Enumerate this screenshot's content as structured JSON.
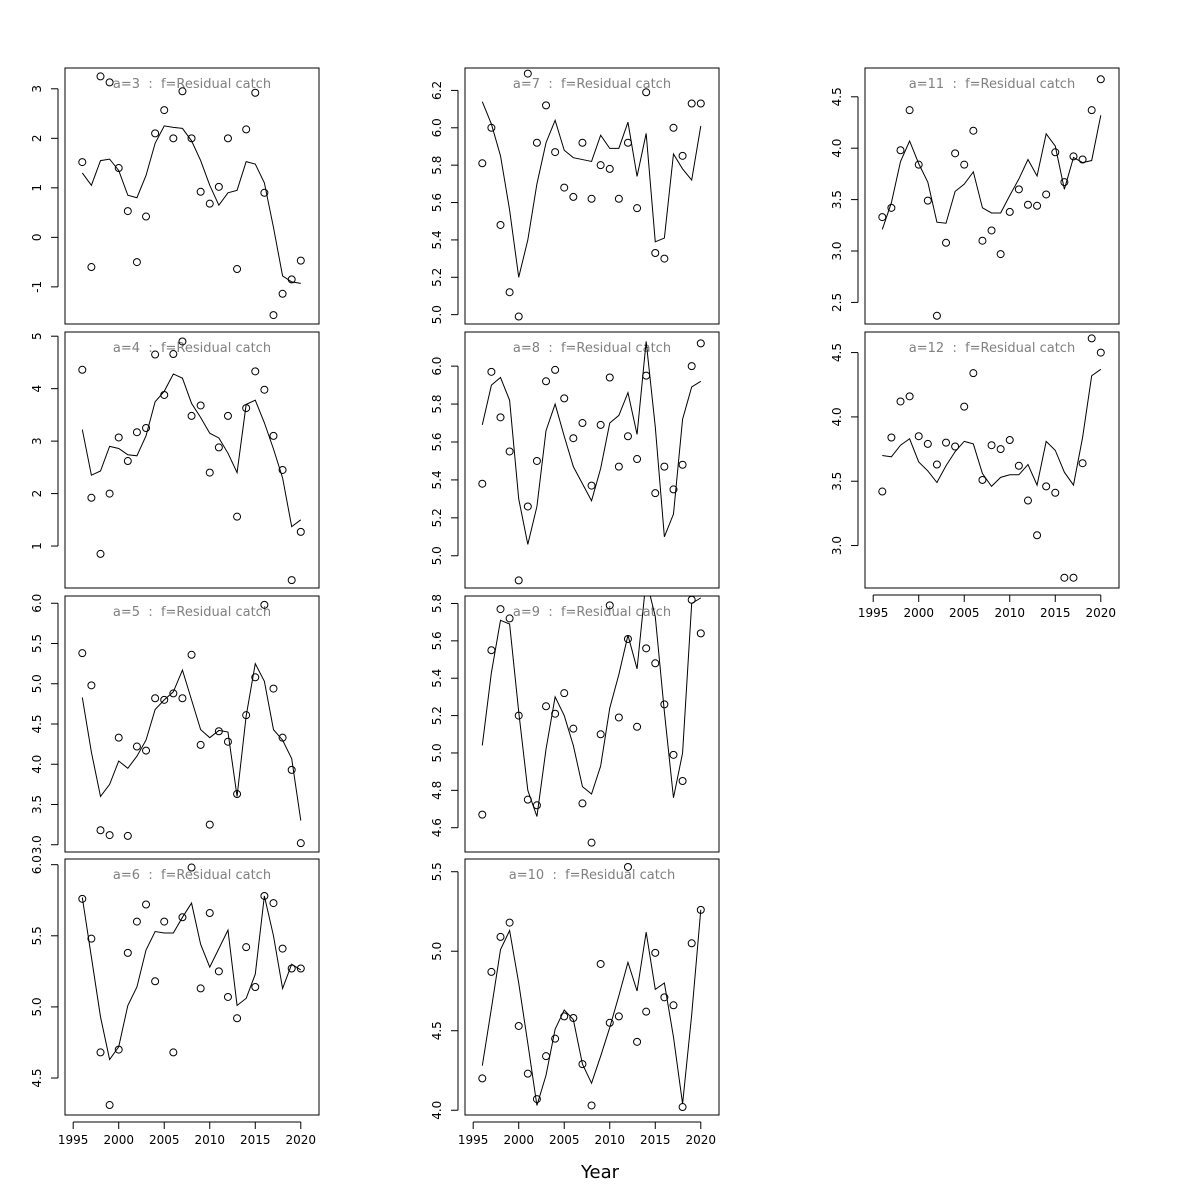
{
  "xlabel": "Year",
  "chart_data": [
    {
      "type": "scatter+line",
      "title": "a=3  :  f=Residual catch",
      "x": [
        1996,
        1997,
        1998,
        1999,
        2000,
        2001,
        2002,
        2003,
        2004,
        2005,
        2006,
        2007,
        2008,
        2009,
        2010,
        2011,
        2012,
        2013,
        2014,
        2015,
        2016,
        2017,
        2018,
        2019,
        2020
      ],
      "xlim": [
        1994.1,
        2022
      ],
      "ylim": [
        -1.75,
        3.42
      ],
      "yticks": [
        -1,
        0,
        1,
        2,
        3
      ],
      "series": [
        {
          "mark": "line",
          "color": "#000000",
          "values": [
            1.3,
            1.05,
            1.55,
            1.58,
            1.35,
            0.85,
            0.8,
            1.25,
            1.9,
            2.25,
            2.22,
            2.2,
            1.95,
            1.55,
            1.05,
            0.65,
            0.9,
            0.95,
            1.53,
            1.48,
            1.1,
            0.2,
            -0.78,
            -0.9,
            -0.93
          ]
        },
        {
          "mark": "circle",
          "color": "#000000",
          "values": [
            1.52,
            -0.6,
            3.25,
            3.13,
            1.4,
            0.53,
            -0.5,
            0.42,
            2.1,
            2.57,
            2.0,
            2.95,
            2.0,
            0.92,
            0.68,
            1.02,
            2.0,
            -0.64,
            2.18,
            2.92,
            0.9,
            -1.57,
            -1.14,
            -0.85,
            -0.47
          ]
        }
      ]
    },
    {
      "type": "scatter+line",
      "title": "a=4  :  f=Residual catch",
      "x": [
        1996,
        1997,
        1998,
        1999,
        2000,
        2001,
        2002,
        2003,
        2004,
        2005,
        2006,
        2007,
        2008,
        2009,
        2010,
        2011,
        2012,
        2013,
        2014,
        2015,
        2016,
        2017,
        2018,
        2019,
        2020
      ],
      "xlim": [
        1994.1,
        2022
      ],
      "ylim": [
        0.2,
        5.08
      ],
      "yticks": [
        1,
        2,
        3,
        4,
        5
      ],
      "series": [
        {
          "mark": "line",
          "color": "#000000",
          "values": [
            3.22,
            2.35,
            2.43,
            2.9,
            2.86,
            2.74,
            2.72,
            3.1,
            3.75,
            3.95,
            4.28,
            4.2,
            3.72,
            3.45,
            3.15,
            3.06,
            2.77,
            2.4,
            3.7,
            3.78,
            3.35,
            2.85,
            2.3,
            1.37,
            1.5
          ]
        },
        {
          "mark": "circle",
          "color": "#000000",
          "values": [
            4.36,
            1.92,
            0.85,
            2.0,
            3.07,
            2.62,
            3.17,
            3.25,
            4.65,
            3.88,
            4.66,
            4.9,
            3.48,
            3.68,
            2.4,
            2.88,
            3.48,
            1.56,
            3.63,
            4.33,
            3.98,
            3.1,
            2.45,
            0.35,
            1.27
          ]
        }
      ]
    },
    {
      "type": "scatter+line",
      "title": "a=5  :  f=Residual catch",
      "x": [
        1996,
        1997,
        1998,
        1999,
        2000,
        2001,
        2002,
        2003,
        2004,
        2005,
        2006,
        2007,
        2008,
        2009,
        2010,
        2011,
        2012,
        2013,
        2014,
        2015,
        2016,
        2017,
        2018,
        2019,
        2020
      ],
      "xlim": [
        1994.1,
        2022
      ],
      "ylim": [
        2.91,
        6.09
      ],
      "yticks": [
        {
          "value": 3,
          "label": "3.0"
        },
        3.5,
        {
          "value": 4,
          "label": "4.0"
        },
        4.5,
        {
          "value": 5,
          "label": "5.0"
        },
        5.5,
        {
          "value": 6,
          "label": "6.0"
        }
      ],
      "series": [
        {
          "mark": "line",
          "color": "#000000",
          "values": [
            4.83,
            4.15,
            3.6,
            3.75,
            4.04,
            3.95,
            4.1,
            4.3,
            4.68,
            4.8,
            4.9,
            5.17,
            4.8,
            4.43,
            4.33,
            4.42,
            4.4,
            3.6,
            4.6,
            5.25,
            5.03,
            4.43,
            4.3,
            4.07,
            3.3
          ]
        },
        {
          "mark": "circle",
          "color": "#000000",
          "values": [
            5.38,
            4.98,
            3.18,
            3.12,
            4.33,
            3.11,
            4.22,
            4.17,
            4.82,
            4.8,
            4.88,
            4.82,
            5.36,
            4.24,
            3.25,
            4.41,
            4.28,
            3.63,
            4.61,
            5.08,
            5.98,
            4.94,
            4.33,
            3.93,
            3.02
          ]
        }
      ]
    },
    {
      "type": "scatter+line",
      "title": "a=6  :  f=Residual catch",
      "x": [
        1996,
        1997,
        1998,
        1999,
        2000,
        2001,
        2002,
        2003,
        2004,
        2005,
        2006,
        2007,
        2008,
        2009,
        2010,
        2011,
        2012,
        2013,
        2014,
        2015,
        2016,
        2017,
        2018,
        2019,
        2020
      ],
      "xlim": [
        1994.1,
        2022
      ],
      "xticks": [
        1995,
        2000,
        2005,
        2010,
        2015,
        2020
      ],
      "ylim": [
        4.24,
        6.04
      ],
      "yticks": [
        4.5,
        {
          "value": 5,
          "label": "5.0"
        },
        5.5,
        {
          "value": 6,
          "label": "6.0"
        }
      ],
      "series": [
        {
          "mark": "line",
          "color": "#000000",
          "values": [
            5.77,
            5.35,
            4.93,
            4.63,
            4.72,
            5.01,
            5.14,
            5.4,
            5.53,
            5.52,
            5.52,
            5.63,
            5.73,
            5.44,
            5.28,
            5.41,
            5.54,
            5.01,
            5.06,
            5.23,
            5.78,
            5.5,
            5.13,
            5.3,
            5.26
          ]
        },
        {
          "mark": "circle",
          "color": "#000000",
          "values": [
            5.76,
            5.48,
            4.68,
            4.31,
            4.7,
            5.38,
            5.6,
            5.72,
            5.18,
            5.6,
            4.68,
            5.63,
            5.98,
            5.13,
            5.66,
            5.25,
            5.07,
            4.92,
            5.42,
            5.14,
            5.78,
            5.73,
            5.41,
            5.27,
            5.27
          ]
        }
      ]
    },
    {
      "type": "scatter+line",
      "title": "a=7  :  f=Residual catch",
      "x": [
        1996,
        1997,
        1998,
        1999,
        2000,
        2001,
        2002,
        2003,
        2004,
        2005,
        2006,
        2007,
        2008,
        2009,
        2010,
        2011,
        2012,
        2013,
        2014,
        2015,
        2016,
        2017,
        2018,
        2019,
        2020
      ],
      "xlim": [
        1994.1,
        2022
      ],
      "ylim": [
        4.95,
        6.32
      ],
      "yticks": [
        {
          "value": 5,
          "label": "5.0"
        },
        5.2,
        5.4,
        5.6,
        5.8,
        {
          "value": 6,
          "label": "6.0"
        },
        6.2
      ],
      "series": [
        {
          "mark": "line",
          "color": "#000000",
          "values": [
            6.14,
            6.02,
            5.85,
            5.56,
            5.2,
            5.4,
            5.7,
            5.92,
            6.04,
            5.88,
            5.84,
            5.83,
            5.82,
            5.96,
            5.89,
            5.89,
            6.03,
            5.74,
            5.97,
            5.39,
            5.41,
            5.86,
            5.78,
            5.72,
            6.01
          ]
        },
        {
          "mark": "circle",
          "color": "#000000",
          "values": [
            5.81,
            6.0,
            5.48,
            5.12,
            4.99,
            6.29,
            5.92,
            6.12,
            5.87,
            5.68,
            5.63,
            5.92,
            5.62,
            5.8,
            5.78,
            5.62,
            5.92,
            5.57,
            6.19,
            5.33,
            5.3,
            6.0,
            5.85,
            6.13,
            6.13
          ]
        }
      ]
    },
    {
      "type": "scatter+line",
      "title": "a=8  :  f=Residual catch",
      "x": [
        1996,
        1997,
        1998,
        1999,
        2000,
        2001,
        2002,
        2003,
        2004,
        2005,
        2006,
        2007,
        2008,
        2009,
        2010,
        2011,
        2012,
        2013,
        2014,
        2015,
        2016,
        2017,
        2018,
        2019,
        2020
      ],
      "xlim": [
        1994.1,
        2022
      ],
      "ylim": [
        4.83,
        6.18
      ],
      "yticks": [
        {
          "value": 5,
          "label": "5.0"
        },
        5.2,
        5.4,
        5.6,
        5.8,
        {
          "value": 6,
          "label": "6.0"
        }
      ],
      "series": [
        {
          "mark": "line",
          "color": "#000000",
          "values": [
            5.69,
            5.9,
            5.94,
            5.82,
            5.3,
            5.06,
            5.26,
            5.66,
            5.8,
            5.63,
            5.47,
            5.38,
            5.29,
            5.46,
            5.7,
            5.74,
            5.86,
            5.64,
            6.13,
            5.68,
            5.1,
            5.22,
            5.72,
            5.89,
            5.92
          ]
        },
        {
          "mark": "circle",
          "color": "#000000",
          "values": [
            5.38,
            5.97,
            5.73,
            5.55,
            4.87,
            5.26,
            5.5,
            5.92,
            5.98,
            5.83,
            5.62,
            5.7,
            5.37,
            5.69,
            5.94,
            5.47,
            5.63,
            5.51,
            5.95,
            5.33,
            5.47,
            5.35,
            5.48,
            6.0,
            6.12
          ]
        }
      ]
    },
    {
      "type": "scatter+line",
      "title": "a=9  :  f=Residual catch",
      "x": [
        1996,
        1997,
        1998,
        1999,
        2000,
        2001,
        2002,
        2003,
        2004,
        2005,
        2006,
        2007,
        2008,
        2009,
        2010,
        2011,
        2012,
        2013,
        2014,
        2015,
        2016,
        2017,
        2018,
        2019,
        2020
      ],
      "xlim": [
        1994.1,
        2022
      ],
      "ylim": [
        4.47,
        5.84
      ],
      "yticks": [
        4.6,
        4.8,
        {
          "value": 5,
          "label": "5.0"
        },
        5.2,
        5.4,
        5.6,
        5.8
      ],
      "series": [
        {
          "mark": "line",
          "color": "#000000",
          "values": [
            5.04,
            5.43,
            5.71,
            5.69,
            5.22,
            4.8,
            4.66,
            5.02,
            5.3,
            5.2,
            5.04,
            4.82,
            4.78,
            4.93,
            5.24,
            5.42,
            5.63,
            5.45,
            5.93,
            5.73,
            5.22,
            4.76,
            5.0,
            5.8,
            5.83
          ]
        },
        {
          "mark": "circle",
          "color": "#000000",
          "values": [
            4.67,
            5.55,
            5.77,
            5.72,
            5.2,
            4.75,
            4.72,
            5.25,
            5.21,
            5.32,
            5.13,
            4.73,
            4.52,
            5.1,
            5.79,
            5.19,
            5.61,
            5.14,
            5.56,
            5.48,
            5.26,
            4.99,
            4.85,
            5.82,
            5.64
          ]
        }
      ]
    },
    {
      "type": "scatter+line",
      "title": "a=10  :  f=Residual catch",
      "x": [
        1996,
        1997,
        1998,
        1999,
        2000,
        2001,
        2002,
        2003,
        2004,
        2005,
        2006,
        2007,
        2008,
        2009,
        2010,
        2011,
        2012,
        2013,
        2014,
        2015,
        2016,
        2017,
        2018,
        2019,
        2020
      ],
      "xlim": [
        1994.1,
        2022
      ],
      "xticks": [
        1995,
        2000,
        2005,
        2010,
        2015,
        2020
      ],
      "ylim": [
        3.97,
        5.58
      ],
      "yticks": [
        {
          "value": 4,
          "label": "4.0"
        },
        4.5,
        {
          "value": 5,
          "label": "5.0"
        },
        5.5
      ],
      "series": [
        {
          "mark": "line",
          "color": "#000000",
          "values": [
            4.28,
            4.64,
            5.01,
            5.13,
            4.8,
            4.42,
            4.03,
            4.22,
            4.51,
            4.63,
            4.57,
            4.29,
            4.17,
            4.34,
            4.52,
            4.72,
            4.93,
            4.75,
            5.12,
            4.76,
            4.8,
            4.46,
            4.04,
            4.6,
            5.26
          ]
        },
        {
          "mark": "circle",
          "color": "#000000",
          "values": [
            4.2,
            4.87,
            5.09,
            5.18,
            4.53,
            4.23,
            4.07,
            4.34,
            4.45,
            4.59,
            4.58,
            4.29,
            4.03,
            4.92,
            4.55,
            4.59,
            5.53,
            4.43,
            4.62,
            4.99,
            4.71,
            4.66,
            4.02,
            5.05,
            5.26
          ]
        }
      ]
    },
    {
      "type": "scatter+line",
      "title": "a=11  :  f=Residual catch",
      "x": [
        1996,
        1997,
        1998,
        1999,
        2000,
        2001,
        2002,
        2003,
        2004,
        2005,
        2006,
        2007,
        2008,
        2009,
        2010,
        2011,
        2012,
        2013,
        2014,
        2015,
        2016,
        2017,
        2018,
        2019,
        2020
      ],
      "xlim": [
        1994.1,
        2022
      ],
      "ylim": [
        2.29,
        4.78
      ],
      "yticks": [
        2.5,
        {
          "value": 3,
          "label": "3.0"
        },
        3.5,
        {
          "value": 4,
          "label": "4.0"
        },
        4.5
      ],
      "series": [
        {
          "mark": "line",
          "color": "#000000",
          "values": [
            3.21,
            3.47,
            3.87,
            4.07,
            3.85,
            3.67,
            3.28,
            3.27,
            3.58,
            3.65,
            3.77,
            3.42,
            3.37,
            3.37,
            3.54,
            3.7,
            3.89,
            3.73,
            4.14,
            4.02,
            3.6,
            3.91,
            3.86,
            3.88,
            4.32
          ]
        },
        {
          "mark": "circle",
          "color": "#000000",
          "values": [
            3.33,
            3.42,
            3.98,
            4.37,
            3.84,
            3.49,
            2.37,
            3.08,
            3.95,
            3.84,
            4.17,
            3.1,
            3.2,
            2.97,
            3.38,
            3.6,
            3.45,
            3.44,
            3.55,
            3.96,
            3.67,
            3.92,
            3.89,
            4.37,
            4.67
          ]
        }
      ]
    },
    {
      "type": "scatter+line",
      "title": "a=12  :  f=Residual catch",
      "x": [
        1996,
        1997,
        1998,
        1999,
        2000,
        2001,
        2002,
        2003,
        2004,
        2005,
        2006,
        2007,
        2008,
        2009,
        2010,
        2011,
        2012,
        2013,
        2014,
        2015,
        2016,
        2017,
        2018,
        2019,
        2020
      ],
      "xlim": [
        1994.1,
        2022
      ],
      "xticks": [
        1995,
        2000,
        2005,
        2010,
        2015,
        2020
      ],
      "ylim": [
        2.67,
        4.66
      ],
      "yticks": [
        {
          "value": 3,
          "label": "3.0"
        },
        3.5,
        {
          "value": 4,
          "label": "4.0"
        },
        4.5
      ],
      "series": [
        {
          "mark": "line",
          "color": "#000000",
          "values": [
            3.7,
            3.69,
            3.78,
            3.83,
            3.65,
            3.58,
            3.49,
            3.62,
            3.73,
            3.81,
            3.79,
            3.56,
            3.46,
            3.53,
            3.55,
            3.55,
            3.63,
            3.47,
            3.81,
            3.74,
            3.57,
            3.47,
            3.84,
            4.32,
            4.37
          ]
        },
        {
          "mark": "circle",
          "color": "#000000",
          "values": [
            3.42,
            3.84,
            4.12,
            4.16,
            3.85,
            3.79,
            3.63,
            3.8,
            3.77,
            4.08,
            4.34,
            3.51,
            3.78,
            3.75,
            3.82,
            3.62,
            3.35,
            3.08,
            3.46,
            3.41,
            2.75,
            2.75,
            3.64,
            4.61,
            4.5
          ]
        }
      ]
    }
  ]
}
